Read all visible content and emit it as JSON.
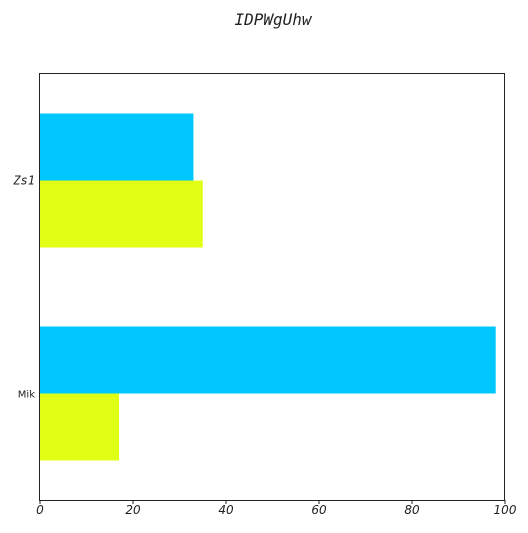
{
  "chart_data": {
    "type": "bar",
    "orientation": "horizontal",
    "title": "IDPWgUhw",
    "xlabel": "",
    "ylabel": "",
    "categories": [
      "Zs1",
      "Mik"
    ],
    "series": [
      {
        "color": "#00c8ff",
        "values": [
          33,
          98
        ]
      },
      {
        "color": "#e0ff14",
        "values": [
          35,
          17
        ]
      }
    ],
    "xlim": [
      0,
      100
    ],
    "xticks": [
      0,
      20,
      40,
      60,
      80,
      100
    ],
    "grid": false,
    "legend": false
  }
}
